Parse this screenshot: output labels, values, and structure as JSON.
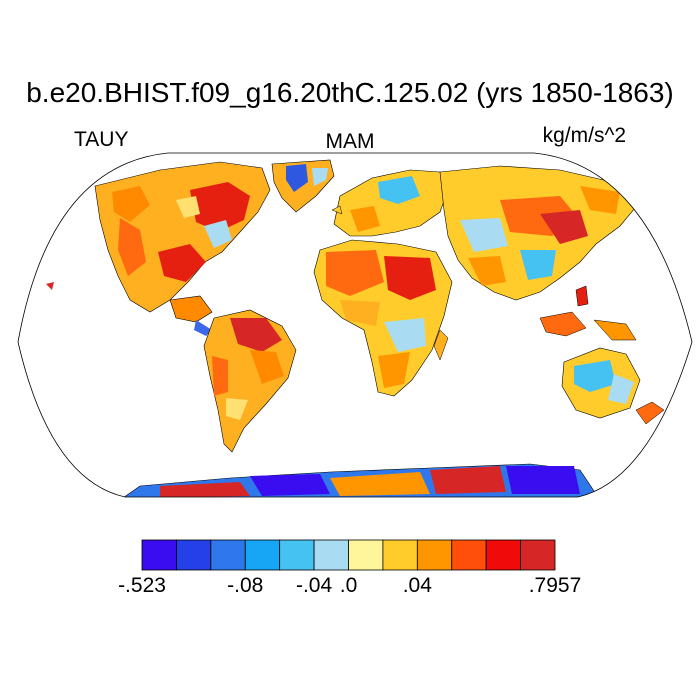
{
  "figure": {
    "title": "b.e20.BHIST.f09_g16.20thC.125.02 (yrs 1850-1863)",
    "left_label": "TAUY",
    "center_label": "MAM",
    "right_label": "kg/m/s^2"
  },
  "colors": {
    "ocean": "#ffffff",
    "coastline": "#000000",
    "frame": "#000000"
  },
  "colorbar": {
    "colors": [
      "#3a0df0",
      "#2440e6",
      "#2e78ec",
      "#17a6f5",
      "#45c1f2",
      "#a9dcf2",
      "#fff59a",
      "#ffcc2b",
      "#ff9600",
      "#ff4f0a",
      "#f00a0a",
      "#d62626"
    ],
    "labels": [
      {
        "text": "-.523",
        "boundary": 0
      },
      {
        "text": "-.08",
        "boundary": 3
      },
      {
        "text": "-.04",
        "boundary": 5
      },
      {
        "text": ".0",
        "boundary": 6
      },
      {
        "text": ".04",
        "boundary": 8
      },
      {
        "text": ".7957",
        "boundary": 12
      }
    ]
  }
}
